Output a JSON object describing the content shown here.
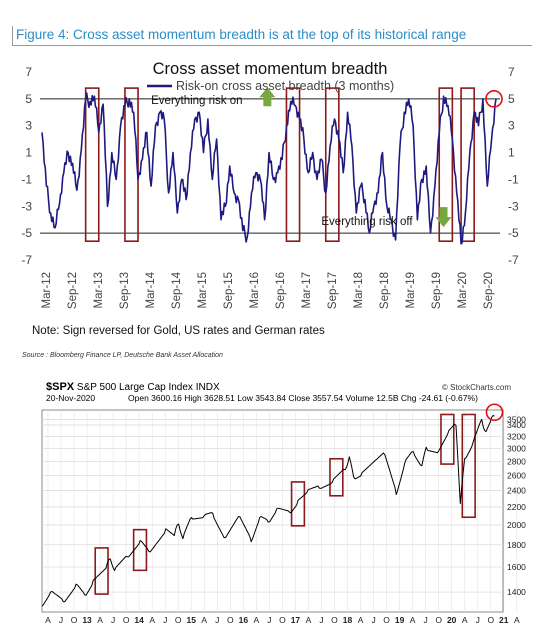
{
  "figure_title": "Figure 4: Cross asset momentum breadth is at the top of its historical range",
  "note": "Note: Sign reversed for Gold, US rates and German rates",
  "source": "Source : Bloomberg Finance LP, Deutsche Bank Asset Allocation",
  "chart_data": [
    {
      "type": "line",
      "title": "Cross asset momentum breadth",
      "series": [
        {
          "name": "Risk-on cross asset breadth (3 months)",
          "color": "#1f1a80",
          "points": [
            [
              "2012-03",
              2.5
            ],
            [
              "2012-04",
              -1.5
            ],
            [
              "2012-05",
              -3.5
            ],
            [
              "2012-06",
              -4.6
            ],
            [
              "2012-07",
              -2.8
            ],
            [
              "2012-08",
              -0.5
            ],
            [
              "2012-09",
              1.0
            ],
            [
              "2012-10",
              0.2
            ],
            [
              "2012-11",
              -1.8
            ],
            [
              "2012-12",
              1.2
            ],
            [
              "2013-01",
              5.0
            ],
            [
              "2013-02",
              4.8
            ],
            [
              "2013-03",
              5.2
            ],
            [
              "2013-04",
              2.5
            ],
            [
              "2013-05",
              4.6
            ],
            [
              "2013-06",
              -3.0
            ],
            [
              "2013-07",
              1.0
            ],
            [
              "2013-08",
              -1.0
            ],
            [
              "2013-09",
              3.0
            ],
            [
              "2013-10",
              4.5
            ],
            [
              "2013-11",
              5.0
            ],
            [
              "2013-12",
              4.0
            ],
            [
              "2014-01",
              -1.0
            ],
            [
              "2014-02",
              0.5
            ],
            [
              "2014-03",
              2.5
            ],
            [
              "2014-04",
              -1.5
            ],
            [
              "2014-05",
              3.0
            ],
            [
              "2014-06",
              4.0
            ],
            [
              "2014-07",
              3.5
            ],
            [
              "2014-08",
              -2.0
            ],
            [
              "2014-09",
              1.0
            ],
            [
              "2014-10",
              -3.5
            ],
            [
              "2014-11",
              -1.0
            ],
            [
              "2014-12",
              -2.5
            ],
            [
              "2015-01",
              1.0
            ],
            [
              "2015-02",
              3.5
            ],
            [
              "2015-03",
              4.0
            ],
            [
              "2015-04",
              1.0
            ],
            [
              "2015-05",
              3.5
            ],
            [
              "2015-06",
              -1.0
            ],
            [
              "2015-07",
              2.0
            ],
            [
              "2015-08",
              -4.0
            ],
            [
              "2015-09",
              -3.0
            ],
            [
              "2015-10",
              0.0
            ],
            [
              "2015-11",
              -2.0
            ],
            [
              "2015-12",
              -2.5
            ],
            [
              "2016-01",
              -4.8
            ],
            [
              "2016-02",
              -5.3
            ],
            [
              "2016-03",
              -2.0
            ],
            [
              "2016-04",
              -0.5
            ],
            [
              "2016-05",
              -1.0
            ],
            [
              "2016-06",
              -4.0
            ],
            [
              "2016-07",
              1.0
            ],
            [
              "2016-08",
              -1.0
            ],
            [
              "2016-09",
              -0.5
            ],
            [
              "2016-10",
              0.5
            ],
            [
              "2016-11",
              3.0
            ],
            [
              "2016-12",
              4.8
            ],
            [
              "2017-01",
              4.5
            ],
            [
              "2017-02",
              3.5
            ],
            [
              "2017-03",
              2.0
            ],
            [
              "2017-04",
              -0.5
            ],
            [
              "2017-05",
              1.0
            ],
            [
              "2017-06",
              -1.0
            ],
            [
              "2017-07",
              0.5
            ],
            [
              "2017-08",
              -2.0
            ],
            [
              "2017-09",
              1.5
            ],
            [
              "2017-10",
              3.5
            ],
            [
              "2017-11",
              2.0
            ],
            [
              "2017-12",
              -0.5
            ],
            [
              "2018-01",
              4.0
            ],
            [
              "2018-02",
              1.5
            ],
            [
              "2018-03",
              -3.5
            ],
            [
              "2018-04",
              -1.5
            ],
            [
              "2018-05",
              -2.5
            ],
            [
              "2018-06",
              -5.0
            ],
            [
              "2018-07",
              -3.0
            ],
            [
              "2018-08",
              -2.0
            ],
            [
              "2018-09",
              1.0
            ],
            [
              "2018-10",
              -3.0
            ],
            [
              "2018-11",
              -4.0
            ],
            [
              "2018-12",
              -5.5
            ],
            [
              "2019-01",
              1.5
            ],
            [
              "2019-02",
              4.0
            ],
            [
              "2019-03",
              5.0
            ],
            [
              "2019-04",
              3.0
            ],
            [
              "2019-05",
              -4.0
            ],
            [
              "2019-06",
              -1.0
            ],
            [
              "2019-07",
              0.0
            ],
            [
              "2019-08",
              -5.0
            ],
            [
              "2019-09",
              -1.5
            ],
            [
              "2019-10",
              2.5
            ],
            [
              "2019-11",
              5.2
            ],
            [
              "2019-12",
              4.5
            ],
            [
              "2020-01",
              2.0
            ],
            [
              "2020-02",
              -2.0
            ],
            [
              "2020-03",
              -5.8
            ],
            [
              "2020-04",
              -3.5
            ],
            [
              "2020-05",
              1.0
            ],
            [
              "2020-06",
              4.0
            ],
            [
              "2020-07",
              3.0
            ],
            [
              "2020-08",
              5.0
            ],
            [
              "2020-09",
              -1.5
            ],
            [
              "2020-10",
              2.0
            ],
            [
              "2020-11",
              5.0
            ]
          ]
        }
      ],
      "x_labels": [
        "Mar-12",
        "Sep-12",
        "Mar-13",
        "Sep-13",
        "Mar-14",
        "Sep-14",
        "Mar-15",
        "Sep-15",
        "Mar-16",
        "Sep-16",
        "Mar-17",
        "Sep-17",
        "Mar-18",
        "Sep-18",
        "Mar-19",
        "Sep-19",
        "Mar-20",
        "Sep-20"
      ],
      "y_ticks": [
        7,
        5,
        3,
        1,
        -1,
        -3,
        -5,
        -7
      ],
      "ylim": [
        -7,
        7
      ],
      "grid": false,
      "axes": "left and right",
      "reference_lines": [
        5,
        -5
      ],
      "annotations": [
        {
          "text": "Everything risk on",
          "date": "2014-04",
          "y": 4.6,
          "arrow": "up",
          "arrow_color": "#76a840"
        },
        {
          "text": "Everything risk off",
          "date": "2017-07",
          "y": -4.4,
          "arrow": "down",
          "arrow_color": "#76a840"
        }
      ],
      "highlight_boxes": [
        [
          "2013-01",
          "2013-04"
        ],
        [
          "2013-10",
          "2014-01"
        ],
        [
          "2016-11",
          "2017-02"
        ],
        [
          "2017-08",
          "2017-11"
        ],
        [
          "2019-10",
          "2020-01"
        ],
        [
          "2020-03",
          "2020-06"
        ]
      ],
      "box_color": "#8b1a1a",
      "marker_circle": {
        "date": "2020-11",
        "y": 5.0,
        "color": "#e01010"
      }
    },
    {
      "type": "line",
      "title": "S&P 500 Large Cap Index",
      "ticker": "$SPX",
      "index_label": "INDX",
      "date": "20-Nov-2020",
      "stats": {
        "open": "3600.16",
        "high": "3628.51",
        "low": "3543.84",
        "close": "3557.54",
        "volume": "12.5B",
        "chg": "-24.61 (-0.67%)"
      },
      "watermark": "© StockCharts.com",
      "series": [
        {
          "name": "S&P 500",
          "color": "#000000",
          "points": [
            [
              "2012-01",
              1300
            ],
            [
              "2012-03",
              1400
            ],
            [
              "2012-06",
              1330
            ],
            [
              "2012-09",
              1460
            ],
            [
              "2012-11",
              1380
            ],
            [
              "2013-01",
              1490
            ],
            [
              "2013-04",
              1590
            ],
            [
              "2013-05",
              1670
            ],
            [
              "2013-06",
              1570
            ],
            [
              "2013-09",
              1690
            ],
            [
              "2013-12",
              1840
            ],
            [
              "2014-02",
              1740
            ],
            [
              "2014-06",
              1960
            ],
            [
              "2014-08",
              1890
            ],
            [
              "2014-09",
              2010
            ],
            [
              "2014-10",
              1860
            ],
            [
              "2014-12",
              2080
            ],
            [
              "2015-03",
              2100
            ],
            [
              "2015-05",
              2130
            ],
            [
              "2015-08",
              1870
            ],
            [
              "2015-11",
              2090
            ],
            [
              "2016-02",
              1830
            ],
            [
              "2016-04",
              2080
            ],
            [
              "2016-06",
              2030
            ],
            [
              "2016-08",
              2180
            ],
            [
              "2016-11",
              2140
            ],
            [
              "2017-01",
              2280
            ],
            [
              "2017-03",
              2370
            ],
            [
              "2017-06",
              2430
            ],
            [
              "2017-09",
              2510
            ],
            [
              "2017-12",
              2680
            ],
            [
              "2018-01",
              2870
            ],
            [
              "2018-02",
              2580
            ],
            [
              "2018-04",
              2640
            ],
            [
              "2018-09",
              2930
            ],
            [
              "2018-12",
              2350
            ],
            [
              "2019-02",
              2780
            ],
            [
              "2019-04",
              2950
            ],
            [
              "2019-06",
              2740
            ],
            [
              "2019-07",
              3020
            ],
            [
              "2019-10",
              2970
            ],
            [
              "2019-12",
              3230
            ],
            [
              "2020-02",
              3390
            ],
            [
              "2020-03",
              2240
            ],
            [
              "2020-04",
              2840
            ],
            [
              "2020-06",
              3100
            ],
            [
              "2020-08",
              3500
            ],
            [
              "2020-09",
              3280
            ],
            [
              "2020-10",
              3450
            ],
            [
              "2020-11",
              3560
            ]
          ]
        }
      ],
      "x_labels": [
        "A",
        "J",
        "O",
        "13",
        "A",
        "J",
        "O",
        "14",
        "A",
        "J",
        "O",
        "15",
        "A",
        "J",
        "O",
        "16",
        "A",
        "J",
        "O",
        "17",
        "A",
        "J",
        "O",
        "18",
        "A",
        "J",
        "O",
        "19",
        "A",
        "J",
        "O",
        "20",
        "A",
        "J",
        "O",
        "21",
        "A"
      ],
      "y_ticks": [
        1400,
        1600,
        1800,
        2000,
        2200,
        2400,
        2600,
        2800,
        3000,
        3200,
        3400,
        3500
      ],
      "y_scale": "log",
      "ylim": [
        1260,
        3680
      ],
      "grid": true,
      "axes": "right",
      "highlight_boxes": [
        [
          "2013-01",
          "2013-04"
        ],
        [
          "2013-10",
          "2014-01"
        ],
        [
          "2016-11",
          "2017-02"
        ],
        [
          "2017-08",
          "2017-11"
        ],
        [
          "2019-10",
          "2020-01"
        ],
        [
          "2020-03",
          "2020-06"
        ]
      ],
      "box_color": "#8b1a1a",
      "marker_circle": {
        "date": "2020-11",
        "y": 3560,
        "color": "#e01010"
      }
    }
  ]
}
